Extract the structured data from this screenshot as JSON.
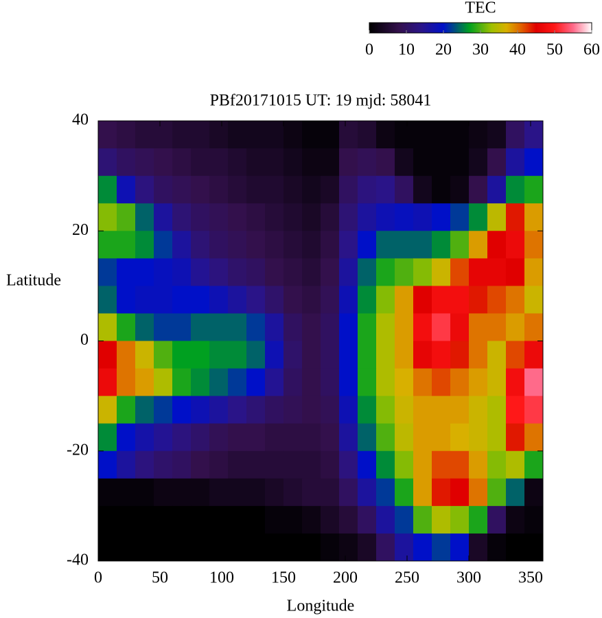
{
  "chart_data": {
    "type": "heatmap",
    "title": "PBf20171015  UT: 19  mjd: 58041",
    "xlabel": "Longitude",
    "ylabel": "Latitude",
    "xlim": [
      0,
      360
    ],
    "ylim": [
      -40,
      40
    ],
    "xticks": [
      0,
      50,
      100,
      150,
      200,
      250,
      300,
      350
    ],
    "yticks": [
      -40,
      -20,
      0,
      20,
      40
    ],
    "colorbar_label": "TEC",
    "zlim": [
      0,
      60
    ],
    "zticks": [
      0,
      10,
      20,
      30,
      40,
      50,
      60
    ],
    "colorscale": [
      [
        0,
        "#000000"
      ],
      [
        8,
        "#33104c"
      ],
      [
        14,
        "#2a1488"
      ],
      [
        20,
        "#0010c8"
      ],
      [
        27,
        "#00a020"
      ],
      [
        33,
        "#a0c000"
      ],
      [
        37,
        "#d8b000"
      ],
      [
        41,
        "#e06000"
      ],
      [
        45,
        "#e00000"
      ],
      [
        50,
        "#ff1818"
      ],
      [
        55,
        "#ff6a8a"
      ],
      [
        60,
        "#ffffff"
      ]
    ],
    "x": [
      7.5,
      22.5,
      37.5,
      52.5,
      67.5,
      82.5,
      97.5,
      112.5,
      127.5,
      142.5,
      157.5,
      172.5,
      187.5,
      202.5,
      217.5,
      232.5,
      247.5,
      262.5,
      277.5,
      292.5,
      307.5,
      322.5,
      337.5,
      352.5
    ],
    "y": [
      37.5,
      32.5,
      27.5,
      22.5,
      17.5,
      12.5,
      7.5,
      2.5,
      -2.5,
      -7.5,
      -12.5,
      -17.5,
      -22.5,
      -27.5,
      -32.5,
      -37.5
    ],
    "z": [
      [
        8,
        7,
        6,
        6,
        5,
        5,
        4,
        3,
        3,
        3,
        2,
        1,
        1,
        6,
        5,
        2,
        1,
        1,
        1,
        1,
        2,
        3,
        10,
        14
      ],
      [
        12,
        10,
        9,
        8,
        7,
        6,
        6,
        5,
        4,
        4,
        3,
        2,
        2,
        8,
        9,
        8,
        3,
        1,
        1,
        1,
        3,
        8,
        16,
        20
      ],
      [
        26,
        18,
        13,
        10,
        9,
        8,
        7,
        6,
        5,
        5,
        4,
        3,
        4,
        10,
        13,
        14,
        10,
        3,
        1,
        2,
        8,
        16,
        26,
        28
      ],
      [
        32,
        30,
        24,
        16,
        12,
        10,
        9,
        8,
        7,
        6,
        5,
        4,
        6,
        12,
        16,
        18,
        19,
        18,
        20,
        22,
        26,
        35,
        44,
        38
      ],
      [
        28,
        28,
        26,
        22,
        16,
        12,
        10,
        9,
        8,
        7,
        6,
        5,
        7,
        14,
        20,
        24,
        24,
        24,
        26,
        30,
        38,
        45,
        47,
        40
      ],
      [
        22,
        20,
        20,
        19,
        18,
        15,
        13,
        11,
        10,
        8,
        7,
        6,
        8,
        16,
        24,
        28,
        30,
        32,
        36,
        42,
        46,
        46,
        45,
        38
      ],
      [
        24,
        20,
        19,
        19,
        20,
        20,
        18,
        16,
        14,
        11,
        8,
        7,
        9,
        18,
        26,
        32,
        38,
        45,
        48,
        48,
        44,
        42,
        40,
        36
      ],
      [
        34,
        28,
        24,
        22,
        22,
        24,
        24,
        24,
        22,
        16,
        10,
        8,
        10,
        20,
        28,
        34,
        38,
        48,
        52,
        47,
        40,
        40,
        38,
        40
      ],
      [
        45,
        40,
        36,
        30,
        27,
        27,
        26,
        26,
        24,
        18,
        11,
        8,
        10,
        20,
        28,
        34,
        38,
        46,
        48,
        44,
        40,
        36,
        42,
        47
      ],
      [
        47,
        40,
        38,
        34,
        28,
        26,
        24,
        22,
        20,
        15,
        10,
        8,
        10,
        20,
        28,
        34,
        37,
        40,
        42,
        40,
        38,
        36,
        48,
        55
      ],
      [
        36,
        28,
        24,
        22,
        20,
        18,
        16,
        14,
        12,
        10,
        9,
        8,
        9,
        18,
        26,
        32,
        36,
        38,
        38,
        38,
        36,
        34,
        50,
        52
      ],
      [
        26,
        20,
        17,
        15,
        13,
        11,
        9,
        8,
        8,
        7,
        7,
        7,
        8,
        16,
        24,
        30,
        35,
        38,
        38,
        37,
        36,
        34,
        44,
        40
      ],
      [
        20,
        16,
        13,
        11,
        10,
        8,
        7,
        6,
        6,
        6,
        6,
        6,
        7,
        13,
        20,
        26,
        32,
        38,
        42,
        42,
        38,
        32,
        34,
        28
      ],
      [
        1,
        1,
        1,
        2,
        2,
        2,
        3,
        3,
        3,
        4,
        5,
        6,
        6,
        10,
        16,
        22,
        28,
        38,
        44,
        45,
        40,
        30,
        24,
        2
      ],
      [
        0,
        0,
        0,
        0,
        0,
        0,
        0,
        0,
        0,
        1,
        1,
        2,
        4,
        6,
        10,
        16,
        22,
        30,
        34,
        32,
        28,
        10,
        2,
        1
      ],
      [
        0,
        0,
        0,
        0,
        0,
        0,
        0,
        0,
        0,
        0,
        0,
        0,
        1,
        2,
        4,
        10,
        16,
        20,
        22,
        20,
        4,
        1,
        0,
        0
      ]
    ]
  }
}
